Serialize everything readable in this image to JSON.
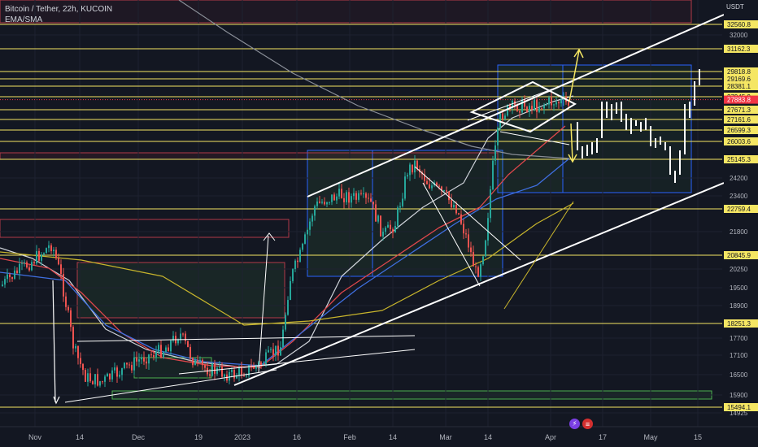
{
  "header": {
    "symbol_line": "Bitcoin / Tether, 22h, KUCOIN",
    "indicator_line": "EMA/SMA"
  },
  "chart_data": {
    "type": "candlestick",
    "currency_label": "USDT",
    "y_ticks": [
      32000,
      24200,
      23400,
      21800,
      20250,
      19500,
      18900,
      17700,
      17100,
      16500,
      15900,
      14925
    ],
    "price_labels": [
      32560.8,
      31162.3,
      29818.8,
      29169.6,
      28381.1,
      27945.9,
      27671.3,
      27161.6,
      26599.3,
      26003.6,
      25145.3,
      22759.4,
      20845.9,
      18251.3,
      15494.1
    ],
    "x_ticks": [
      "Nov",
      "14",
      "Dec",
      "19",
      "2023",
      "16",
      "Feb",
      "14",
      "Mar",
      "14",
      "Apr",
      "17",
      "May",
      "15"
    ],
    "current_price": 27883.8,
    "colors": {
      "up": "#26a69a",
      "down": "#ef5350",
      "level": "#f5e663",
      "last_price": "#f23645",
      "ema_white": "#cfd3da",
      "ema_red": "#e0474c",
      "ema_blue": "#3f6fe0",
      "ema_yellow": "#c8b52c",
      "sma_gray": "#8a8f98"
    }
  },
  "toolbar": {
    "event_icons": [
      "lightning-icon",
      "us-flag-icon"
    ]
  }
}
